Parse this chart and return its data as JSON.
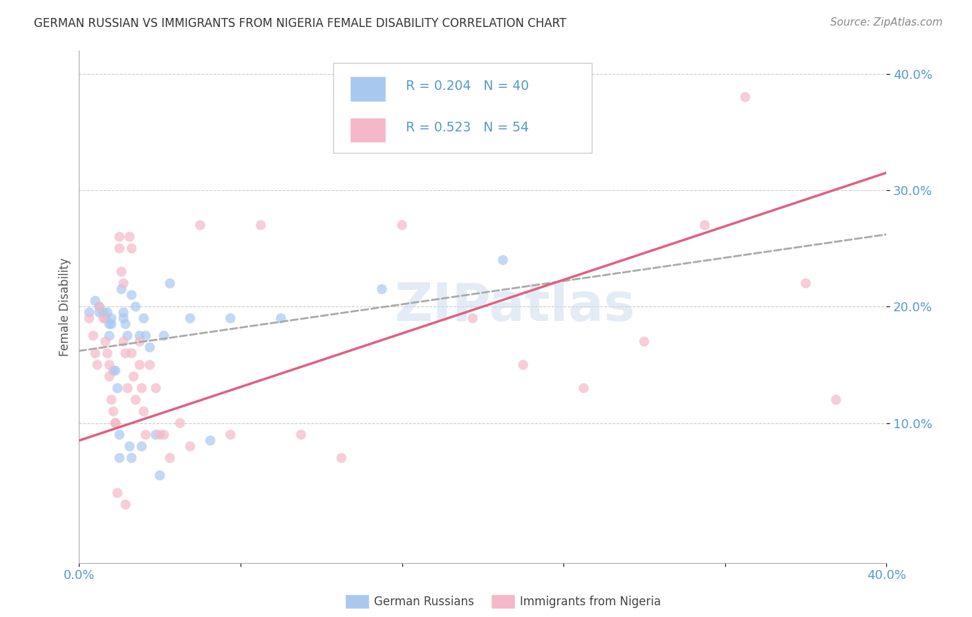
{
  "title": "GERMAN RUSSIAN VS IMMIGRANTS FROM NIGERIA FEMALE DISABILITY CORRELATION CHART",
  "source": "Source: ZipAtlas.com",
  "ylabel": "Female Disability",
  "xlim": [
    0.0,
    0.4
  ],
  "ylim": [
    -0.02,
    0.42
  ],
  "yticks": [
    0.1,
    0.2,
    0.3,
    0.4
  ],
  "ytick_labels": [
    "10.0%",
    "20.0%",
    "30.0%",
    "40.0%"
  ],
  "xticks": [
    0.0,
    0.08,
    0.16,
    0.24,
    0.32,
    0.4
  ],
  "xtick_labels": [
    "0.0%",
    "",
    "",
    "",
    "",
    "40.0%"
  ],
  "watermark": "ZIPatlas",
  "legend_color1": "#a8c8f0",
  "legend_color2": "#f4b8c8",
  "scatter_color1": "#a8c8f0",
  "scatter_color2": "#f4b8c8",
  "line_color1": "#6699cc",
  "line_color2": "#e06080",
  "tick_color": "#5599cc",
  "bottom_legend1": "German Russians",
  "bottom_legend2": "Immigrants from Nigeria",
  "gr_x": [
    0.005,
    0.008,
    0.01,
    0.012,
    0.013,
    0.014,
    0.015,
    0.015,
    0.016,
    0.016,
    0.017,
    0.018,
    0.019,
    0.02,
    0.02,
    0.021,
    0.022,
    0.022,
    0.023,
    0.024,
    0.025,
    0.026,
    0.026,
    0.028,
    0.03,
    0.031,
    0.032,
    0.033,
    0.035,
    0.038,
    0.04,
    0.042,
    0.045,
    0.055,
    0.065,
    0.075,
    0.1,
    0.15,
    0.21,
    0.01
  ],
  "gr_y": [
    0.195,
    0.205,
    0.2,
    0.195,
    0.19,
    0.195,
    0.185,
    0.175,
    0.19,
    0.185,
    0.145,
    0.145,
    0.13,
    0.09,
    0.07,
    0.215,
    0.195,
    0.19,
    0.185,
    0.175,
    0.08,
    0.07,
    0.21,
    0.2,
    0.175,
    0.08,
    0.19,
    0.175,
    0.165,
    0.09,
    0.055,
    0.175,
    0.22,
    0.19,
    0.085,
    0.19,
    0.19,
    0.215,
    0.24,
    0.195
  ],
  "ng_x": [
    0.005,
    0.007,
    0.008,
    0.009,
    0.01,
    0.012,
    0.013,
    0.014,
    0.015,
    0.015,
    0.016,
    0.017,
    0.018,
    0.018,
    0.019,
    0.02,
    0.02,
    0.021,
    0.022,
    0.022,
    0.023,
    0.023,
    0.024,
    0.025,
    0.026,
    0.026,
    0.027,
    0.028,
    0.03,
    0.03,
    0.031,
    0.032,
    0.033,
    0.035,
    0.038,
    0.04,
    0.042,
    0.045,
    0.05,
    0.055,
    0.06,
    0.075,
    0.09,
    0.11,
    0.13,
    0.16,
    0.195,
    0.22,
    0.25,
    0.28,
    0.31,
    0.33,
    0.36,
    0.375
  ],
  "ng_y": [
    0.19,
    0.175,
    0.16,
    0.15,
    0.2,
    0.19,
    0.17,
    0.16,
    0.15,
    0.14,
    0.12,
    0.11,
    0.1,
    0.1,
    0.04,
    0.26,
    0.25,
    0.23,
    0.22,
    0.17,
    0.16,
    0.03,
    0.13,
    0.26,
    0.25,
    0.16,
    0.14,
    0.12,
    0.17,
    0.15,
    0.13,
    0.11,
    0.09,
    0.15,
    0.13,
    0.09,
    0.09,
    0.07,
    0.1,
    0.08,
    0.27,
    0.09,
    0.27,
    0.09,
    0.07,
    0.27,
    0.19,
    0.15,
    0.13,
    0.17,
    0.27,
    0.38,
    0.22,
    0.12
  ],
  "gr_line_x": [
    0.0,
    0.4
  ],
  "gr_line_y": [
    0.162,
    0.262
  ],
  "ng_line_x": [
    0.0,
    0.4
  ],
  "ng_line_y": [
    0.085,
    0.315
  ]
}
